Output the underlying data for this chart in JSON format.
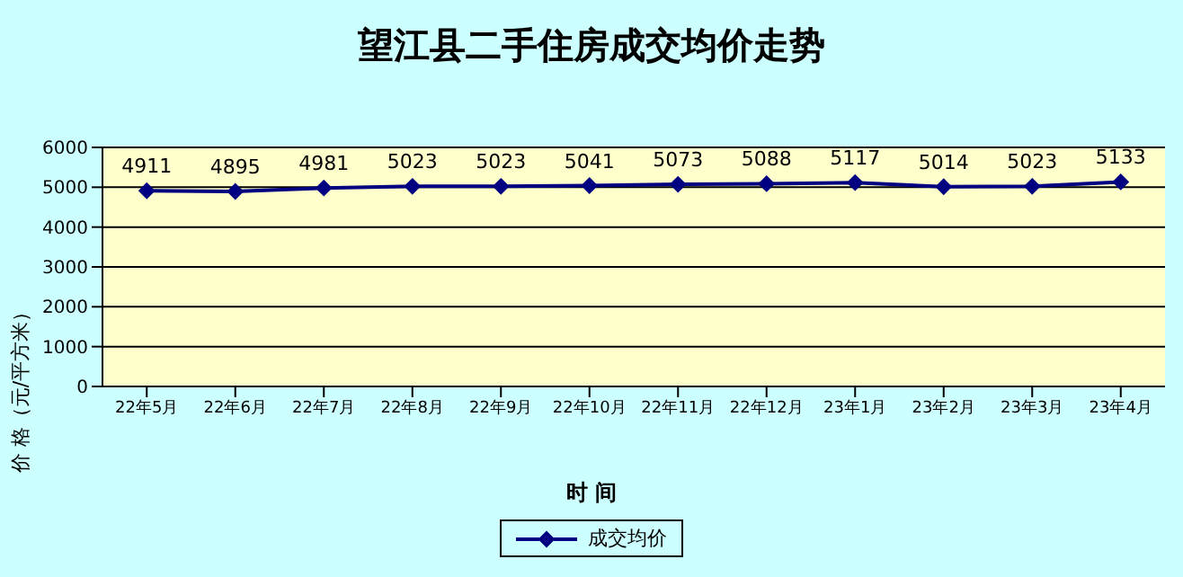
{
  "chart_data": {
    "type": "line",
    "title": "望江县二手住房成交均价走势",
    "xlabel": "时 间",
    "ylabel": "价 格（元/平方米）",
    "categories": [
      "22年5月",
      "22年6月",
      "22年7月",
      "22年8月",
      "22年9月",
      "22年10月",
      "22年11月",
      "22年12月",
      "23年1月",
      "23年2月",
      "23年3月",
      "23年4月"
    ],
    "series": [
      {
        "name": "成交均价",
        "color": "#000080",
        "values": [
          4911,
          4895,
          4981,
          5023,
          5023,
          5041,
          5073,
          5088,
          5117,
          5014,
          5023,
          5133
        ]
      }
    ],
    "ylim": [
      0,
      6000
    ],
    "yticks": [
      0,
      1000,
      2000,
      3000,
      4000,
      5000,
      6000
    ],
    "grid": "y",
    "legend": "bottom",
    "marker": "diamond",
    "line_style": "solid",
    "data_labels": true
  }
}
